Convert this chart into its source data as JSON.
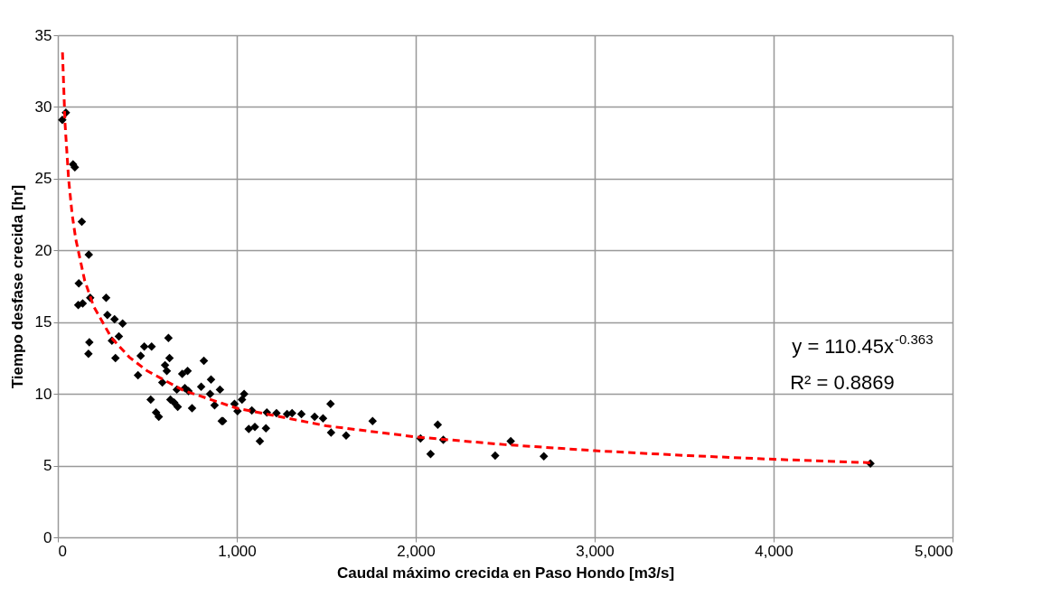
{
  "chart_data": {
    "type": "scatter",
    "xlabel": "Caudal máximo crecida en Paso Hondo [m3/s]",
    "ylabel": "Tiempo desfase crecida [hr]",
    "xlim": [
      0,
      5000
    ],
    "xticks": [
      0,
      {
        "value": 1000,
        "label": "1,000"
      },
      {
        "value": 2000,
        "label": "2,000"
      },
      {
        "value": 3000,
        "label": "3,000"
      },
      {
        "value": 4000,
        "label": "4,000"
      },
      {
        "value": 5000,
        "label": "5,000"
      }
    ],
    "ylim": [
      0,
      35
    ],
    "yticks": [
      0,
      5,
      10,
      15,
      20,
      25,
      30,
      35
    ],
    "grid": true,
    "annotations": [
      "y = 110.45x$^{-0.363}$",
      "R² = 0.8869"
    ],
    "series": [
      {
        "color": "#000000",
        "marker": "diamond",
        "x": [
          25,
          45,
          85,
          95,
          134,
          173,
          117,
          114,
          139,
          181,
          270,
          277,
          317,
          362,
          341,
          302,
          618,
          176,
          171,
          322,
          463,
          448,
          483,
          524,
          624,
          599,
          609,
          584,
          695,
          725,
          816,
          801,
          856,
          906,
          851,
          876,
          916,
          665,
          710,
          730,
          629,
          650,
          670,
          750,
          519,
          549,
          564,
          923,
          987,
          1004,
          1029,
          1041,
          1084,
          1067,
          1101,
          1129,
          1163,
          1168,
          1222,
          1281,
          1309,
          1361,
          1435,
          1482,
          1524,
          1527,
          1611,
          1759,
          2027,
          2083,
          2123,
          2154,
          2444,
          2531,
          2716,
          4541
        ],
        "values": [
          29.1,
          29.6,
          26.0,
          25.8,
          22.0,
          19.7,
          17.7,
          16.2,
          16.3,
          16.7,
          16.7,
          15.5,
          15.2,
          14.9,
          14.0,
          13.7,
          13.9,
          13.6,
          12.8,
          12.5,
          12.65,
          11.3,
          13.3,
          13.3,
          12.5,
          12.0,
          11.6,
          10.8,
          11.4,
          11.6,
          12.3,
          10.5,
          11.0,
          10.3,
          10.0,
          9.2,
          8.1,
          10.3,
          10.4,
          10.2,
          9.6,
          9.4,
          9.1,
          9.0,
          9.6,
          8.7,
          8.4,
          8.1,
          9.3,
          8.8,
          9.6,
          10.0,
          8.85,
          7.55,
          7.7,
          6.7,
          7.6,
          8.7,
          8.65,
          8.6,
          8.65,
          8.6,
          8.4,
          8.3,
          9.3,
          7.3,
          7.1,
          8.1,
          6.9,
          5.8,
          7.85,
          6.8,
          5.7,
          6.7,
          5.65,
          5.14
        ]
      },
      {
        "type": "line",
        "color": "#ff0000",
        "line_style": "dashed",
        "x": [
          26,
          40,
          60,
          80,
          100,
          150,
          200,
          300,
          400,
          500,
          700,
          1000,
          1500,
          2000,
          2500,
          3000,
          3500,
          4000,
          4540
        ],
        "values": [
          33.8,
          28.9,
          25.0,
          22.5,
          20.8,
          17.9,
          16.1,
          13.9,
          12.55,
          11.6,
          10.25,
          9.0,
          7.77,
          7.0,
          6.46,
          6.04,
          5.71,
          5.44,
          5.2
        ]
      }
    ]
  }
}
